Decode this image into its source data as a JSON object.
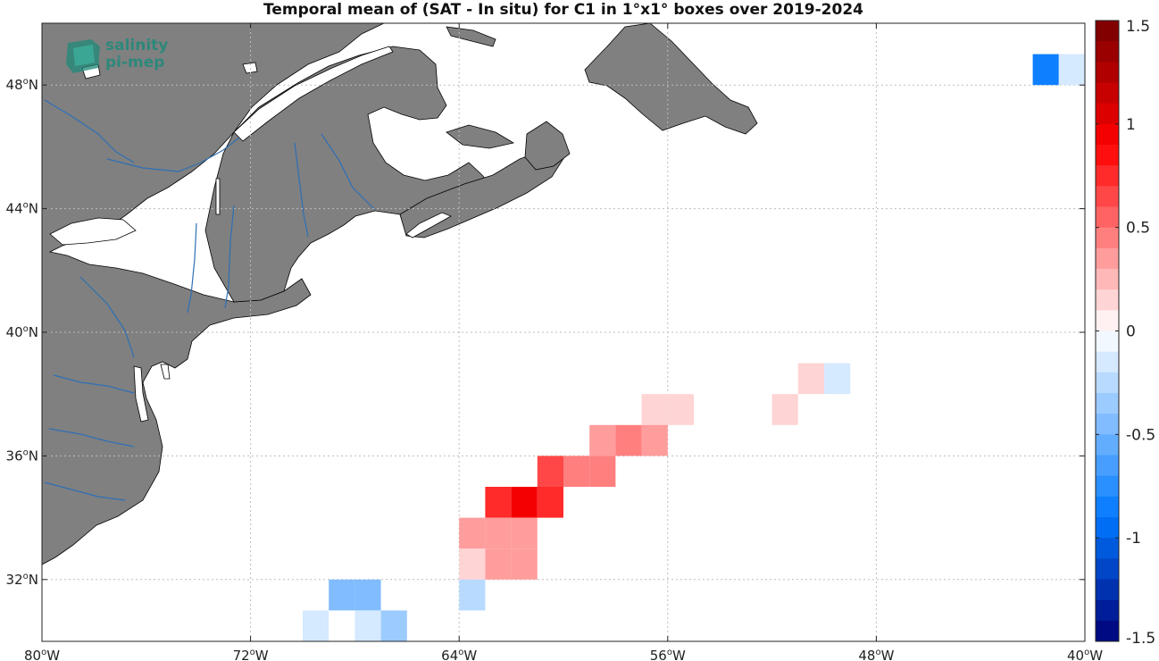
{
  "title": "Temporal mean of (SAT - In situ) for C1 in 1°x1° boxes over 2019-2024",
  "logo": {
    "line1": "salinity",
    "line2": "pi-mep",
    "icon": "salinity-pimep-logo-icon"
  },
  "map": {
    "lon_range": [
      -80,
      -40
    ],
    "lat_range": [
      30,
      50
    ],
    "grid": "dotted",
    "land_color": "#808080",
    "ocean_color": "#ffffff",
    "river_color": "#2e6fb5",
    "lon_ticks": [
      {
        "value": -80,
        "deg": "80",
        "dir": "W"
      },
      {
        "value": -72,
        "deg": "72",
        "dir": "W"
      },
      {
        "value": -64,
        "deg": "64",
        "dir": "W"
      },
      {
        "value": -56,
        "deg": "56",
        "dir": "W"
      },
      {
        "value": -48,
        "deg": "48",
        "dir": "W"
      },
      {
        "value": -40,
        "deg": "40",
        "dir": "W"
      }
    ],
    "lat_ticks": [
      {
        "value": 48,
        "deg": "48",
        "dir": "N"
      },
      {
        "value": 44,
        "deg": "44",
        "dir": "N"
      },
      {
        "value": 40,
        "deg": "40",
        "dir": "N"
      },
      {
        "value": 36,
        "deg": "36",
        "dir": "N"
      },
      {
        "value": 32,
        "deg": "32",
        "dir": "N"
      }
    ]
  },
  "colorbar": {
    "range": [
      -1.5,
      1.5
    ],
    "levels": 30,
    "tick_values": [
      1.5,
      1,
      0.5,
      0,
      -0.5,
      -1,
      -1.5
    ],
    "tick_labels": [
      "1.5",
      "1",
      "0.5",
      "0",
      "-0.5",
      "-1",
      "-1.5"
    ]
  },
  "chart_data": {
    "type": "heatmap",
    "title": "Temporal mean of (SAT - In situ) for C1 in 1°x1° boxes over 2019-2024",
    "xlim": [
      -80,
      -40
    ],
    "ylim": [
      30,
      50
    ],
    "cell_size_deg": 1,
    "cells": [
      {
        "lon0": -42,
        "lat0": 48,
        "value": -0.85
      },
      {
        "lon0": -41,
        "lat0": 48,
        "value": -0.1
      },
      {
        "lon0": -51,
        "lat0": 38,
        "value": 0.15
      },
      {
        "lon0": -50,
        "lat0": 38,
        "value": -0.15
      },
      {
        "lon0": -57,
        "lat0": 37,
        "value": 0.15
      },
      {
        "lon0": -56,
        "lat0": 37,
        "value": 0.15
      },
      {
        "lon0": -52,
        "lat0": 37,
        "value": 0.15
      },
      {
        "lon0": -59,
        "lat0": 36,
        "value": 0.3
      },
      {
        "lon0": -58,
        "lat0": 36,
        "value": 0.45
      },
      {
        "lon0": -57,
        "lat0": 36,
        "value": 0.3
      },
      {
        "lon0": -61,
        "lat0": 35,
        "value": 0.6
      },
      {
        "lon0": -60,
        "lat0": 35,
        "value": 0.45
      },
      {
        "lon0": -59,
        "lat0": 35,
        "value": 0.45
      },
      {
        "lon0": -63,
        "lat0": 34,
        "value": 0.75
      },
      {
        "lon0": -62,
        "lat0": 34,
        "value": 0.95
      },
      {
        "lon0": -61,
        "lat0": 34,
        "value": 0.75
      },
      {
        "lon0": -64,
        "lat0": 33,
        "value": 0.4
      },
      {
        "lon0": -63,
        "lat0": 33,
        "value": 0.4
      },
      {
        "lon0": -62,
        "lat0": 33,
        "value": 0.4
      },
      {
        "lon0": -64,
        "lat0": 32,
        "value": 0.15
      },
      {
        "lon0": -63,
        "lat0": 32,
        "value": 0.3
      },
      {
        "lon0": -62,
        "lat0": 32,
        "value": 0.3
      },
      {
        "lon0": -64,
        "lat0": 31,
        "value": -0.25
      },
      {
        "lon0": -69,
        "lat0": 31,
        "value": -0.5
      },
      {
        "lon0": -68,
        "lat0": 31,
        "value": -0.5
      },
      {
        "lon0": -70,
        "lat0": 30,
        "value": -0.15
      },
      {
        "lon0": -68,
        "lat0": 30,
        "value": -0.15
      },
      {
        "lon0": -67,
        "lat0": 30,
        "value": -0.3
      }
    ]
  }
}
